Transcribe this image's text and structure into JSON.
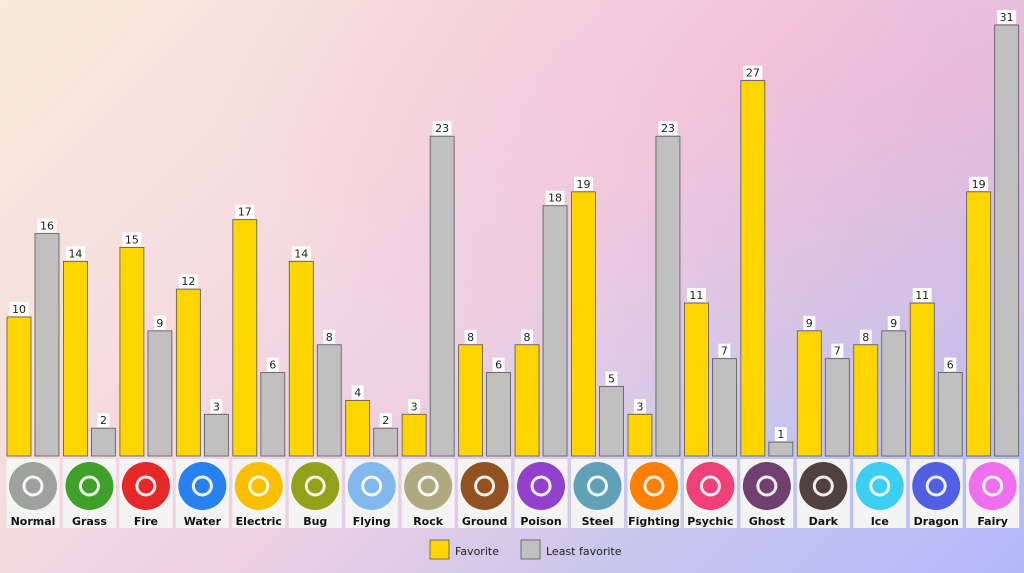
{
  "chart_data": {
    "type": "bar",
    "categories": [
      "Normal",
      "Grass",
      "Fire",
      "Water",
      "Electric",
      "Bug",
      "Flying",
      "Rock",
      "Ground",
      "Poison",
      "Steel",
      "Fighting",
      "Psychic",
      "Ghost",
      "Dark",
      "Ice",
      "Dragon",
      "Fairy"
    ],
    "series": [
      {
        "name": "Favorite",
        "color": "#ffd500",
        "values": [
          10,
          14,
          15,
          12,
          17,
          14,
          4,
          3,
          8,
          8,
          19,
          3,
          11,
          27,
          9,
          8,
          11,
          19
        ]
      },
      {
        "name": "Least favorite",
        "color": "#c0c0c0",
        "values": [
          16,
          2,
          9,
          3,
          6,
          8,
          2,
          23,
          6,
          18,
          5,
          23,
          7,
          1,
          7,
          9,
          6,
          31
        ]
      }
    ],
    "ylim": [
      0,
      31
    ],
    "grid": false,
    "legend_position": "bottom-center",
    "type_icons": [
      {
        "icon": "normal-type-icon",
        "color": "#9fa19f"
      },
      {
        "icon": "grass-type-icon",
        "color": "#3fa129"
      },
      {
        "icon": "fire-type-icon",
        "color": "#e62829"
      },
      {
        "icon": "water-type-icon",
        "color": "#2980ef"
      },
      {
        "icon": "electric-type-icon",
        "color": "#fac000"
      },
      {
        "icon": "bug-type-icon",
        "color": "#91a119"
      },
      {
        "icon": "flying-type-icon",
        "color": "#81b9ef"
      },
      {
        "icon": "rock-type-icon",
        "color": "#afa981"
      },
      {
        "icon": "ground-type-icon",
        "color": "#915121"
      },
      {
        "icon": "poison-type-icon",
        "color": "#9141cb"
      },
      {
        "icon": "steel-type-icon",
        "color": "#60a1b8"
      },
      {
        "icon": "fighting-type-icon",
        "color": "#ff8000"
      },
      {
        "icon": "psychic-type-icon",
        "color": "#ef4179"
      },
      {
        "icon": "ghost-type-icon",
        "color": "#704170"
      },
      {
        "icon": "dark-type-icon",
        "color": "#50413f"
      },
      {
        "icon": "ice-type-icon",
        "color": "#3dcef3"
      },
      {
        "icon": "dragon-type-icon",
        "color": "#5060e1"
      },
      {
        "icon": "fairy-type-icon",
        "color": "#ef70ef"
      }
    ]
  }
}
